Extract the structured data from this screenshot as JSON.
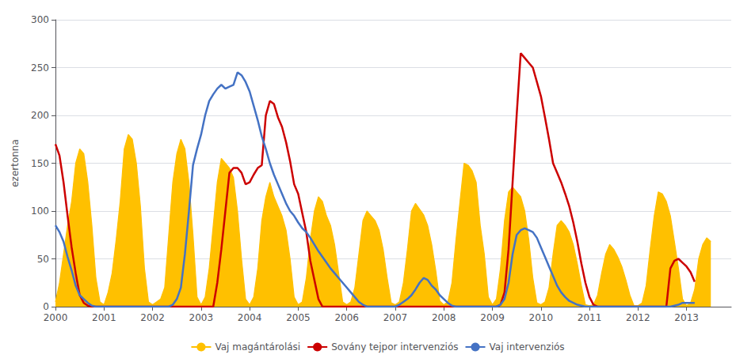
{
  "chart_data": {
    "type": "line",
    "ylabel": "ezertonna",
    "xlim": [
      2000.0,
      2013.92
    ],
    "xticks": [
      2000,
      2001,
      2002,
      2003,
      2004,
      2005,
      2006,
      2007,
      2008,
      2009,
      2010,
      2011,
      2012,
      2013
    ],
    "ylim": [
      0,
      300
    ],
    "yticks": [
      0,
      50,
      100,
      150,
      200,
      250,
      300
    ],
    "grid": true,
    "legend": "bottom",
    "x": [
      2000,
      2000.0833,
      2000.1667,
      2000.25,
      2000.3333,
      2000.4167,
      2000.5,
      2000.5833,
      2000.6667,
      2000.75,
      2000.8333,
      2000.9167,
      2001,
      2001.0833,
      2001.1667,
      2001.25,
      2001.3333,
      2001.4167,
      2001.5,
      2001.5833,
      2001.6667,
      2001.75,
      2001.8333,
      2001.9167,
      2002,
      2002.0833,
      2002.1667,
      2002.25,
      2002.3333,
      2002.4167,
      2002.5,
      2002.5833,
      2002.6667,
      2002.75,
      2002.8333,
      2002.9167,
      2003,
      2003.0833,
      2003.1667,
      2003.25,
      2003.3333,
      2003.4167,
      2003.5,
      2003.5833,
      2003.6667,
      2003.75,
      2003.8333,
      2003.9167,
      2004,
      2004.0833,
      2004.1667,
      2004.25,
      2004.3333,
      2004.4167,
      2004.5,
      2004.5833,
      2004.6667,
      2004.75,
      2004.8333,
      2004.9167,
      2005,
      2005.0833,
      2005.1667,
      2005.25,
      2005.3333,
      2005.4167,
      2005.5,
      2005.5833,
      2005.6667,
      2005.75,
      2005.8333,
      2005.9167,
      2006,
      2006.0833,
      2006.1667,
      2006.25,
      2006.3333,
      2006.4167,
      2006.5,
      2006.5833,
      2006.6667,
      2006.75,
      2006.8333,
      2006.9167,
      2007,
      2007.0833,
      2007.1667,
      2007.25,
      2007.3333,
      2007.4167,
      2007.5,
      2007.5833,
      2007.6667,
      2007.75,
      2007.8333,
      2007.9167,
      2008,
      2008.0833,
      2008.1667,
      2008.25,
      2008.3333,
      2008.4167,
      2008.5,
      2008.5833,
      2008.6667,
      2008.75,
      2008.8333,
      2008.9167,
      2009,
      2009.0833,
      2009.1667,
      2009.25,
      2009.3333,
      2009.4167,
      2009.5,
      2009.5833,
      2009.6667,
      2009.75,
      2009.8333,
      2009.9167,
      2010,
      2010.0833,
      2010.1667,
      2010.25,
      2010.3333,
      2010.4167,
      2010.5,
      2010.5833,
      2010.6667,
      2010.75,
      2010.8333,
      2010.9167,
      2011,
      2011.0833,
      2011.1667,
      2011.25,
      2011.3333,
      2011.4167,
      2011.5,
      2011.5833,
      2011.6667,
      2011.75,
      2011.8333,
      2011.9167,
      2012,
      2012.0833,
      2012.1667,
      2012.25,
      2012.3333,
      2012.4167,
      2012.5,
      2012.5833,
      2012.6667,
      2012.75,
      2012.8333,
      2012.9167,
      2013,
      2013.0833,
      2013.1667,
      2013.25,
      2013.3333,
      2013.4167,
      2013.5
    ],
    "series": [
      {
        "name": "Vaj magántárolási",
        "type": "area",
        "color": "#ffc000",
        "values": [
          5,
          25,
          55,
          85,
          110,
          150,
          165,
          160,
          130,
          85,
          30,
          5,
          2,
          15,
          35,
          70,
          110,
          165,
          180,
          175,
          150,
          105,
          40,
          5,
          2,
          5,
          8,
          20,
          75,
          130,
          160,
          175,
          165,
          130,
          75,
          10,
          2,
          10,
          40,
          85,
          130,
          155,
          150,
          145,
          135,
          100,
          50,
          8,
          2,
          10,
          40,
          90,
          115,
          130,
          115,
          105,
          95,
          80,
          50,
          10,
          2,
          5,
          30,
          70,
          100,
          115,
          110,
          95,
          85,
          65,
          35,
          5,
          2,
          5,
          20,
          55,
          90,
          100,
          95,
          90,
          80,
          60,
          30,
          4,
          2,
          5,
          25,
          60,
          100,
          108,
          102,
          96,
          85,
          65,
          38,
          6,
          2,
          5,
          25,
          70,
          110,
          150,
          148,
          142,
          130,
          85,
          55,
          10,
          2,
          8,
          40,
          90,
          120,
          125,
          120,
          115,
          100,
          70,
          30,
          4,
          2,
          5,
          20,
          55,
          85,
          90,
          85,
          78,
          65,
          45,
          22,
          2,
          1,
          2,
          12,
          35,
          55,
          65,
          60,
          52,
          42,
          28,
          12,
          1,
          1,
          4,
          22,
          60,
          95,
          120,
          118,
          110,
          95,
          68,
          40,
          8,
          1,
          4,
          18,
          50,
          65,
          72,
          68
        ]
      },
      {
        "name": "Sovány tejpor intervenziós",
        "type": "line",
        "color": "#cc0000",
        "values": [
          170,
          158,
          130,
          95,
          62,
          35,
          12,
          4,
          1,
          0,
          0,
          0,
          0,
          0,
          0,
          0,
          0,
          0,
          0,
          0,
          0,
          0,
          0,
          0,
          0,
          0,
          0,
          0,
          0,
          0,
          0,
          0,
          0,
          0,
          0,
          0,
          0,
          0,
          0,
          0,
          25,
          60,
          100,
          140,
          145,
          145,
          140,
          128,
          130,
          138,
          145,
          148,
          200,
          215,
          212,
          198,
          188,
          172,
          152,
          128,
          118,
          98,
          78,
          48,
          28,
          8,
          0,
          0,
          0,
          0,
          0,
          0,
          0,
          0,
          0,
          0,
          0,
          0,
          0,
          0,
          0,
          0,
          0,
          0,
          0,
          0,
          0,
          0,
          0,
          0,
          0,
          0,
          0,
          0,
          0,
          0,
          0,
          0,
          0,
          0,
          0,
          0,
          0,
          0,
          0,
          0,
          0,
          0,
          0,
          0,
          2,
          15,
          60,
          130,
          200,
          265,
          260,
          255,
          250,
          235,
          220,
          198,
          175,
          150,
          140,
          130,
          118,
          105,
          88,
          68,
          45,
          25,
          10,
          2,
          0,
          0,
          0,
          0,
          0,
          0,
          0,
          0,
          0,
          0,
          0,
          0,
          0,
          0,
          0,
          0,
          0,
          0,
          40,
          48,
          50,
          46,
          42,
          36,
          26,
          null,
          null,
          null,
          null
        ]
      },
      {
        "name": "Vaj intervenziós",
        "type": "line",
        "color": "#4472c4",
        "values": [
          85,
          78,
          68,
          52,
          38,
          22,
          12,
          8,
          4,
          1,
          0,
          0,
          0,
          0,
          0,
          0,
          0,
          0,
          0,
          0,
          0,
          0,
          0,
          0,
          0,
          0,
          0,
          0,
          0,
          2,
          8,
          20,
          55,
          100,
          148,
          165,
          180,
          200,
          215,
          222,
          228,
          232,
          228,
          230,
          232,
          245,
          242,
          235,
          225,
          210,
          195,
          178,
          165,
          150,
          138,
          128,
          118,
          108,
          100,
          95,
          88,
          82,
          78,
          72,
          65,
          58,
          52,
          46,
          40,
          35,
          30,
          25,
          20,
          15,
          10,
          5,
          2,
          0,
          0,
          0,
          0,
          0,
          0,
          0,
          0,
          2,
          5,
          8,
          12,
          18,
          25,
          30,
          28,
          22,
          18,
          12,
          8,
          4,
          1,
          0,
          0,
          0,
          0,
          0,
          0,
          0,
          0,
          0,
          0,
          0,
          2,
          8,
          25,
          55,
          75,
          80,
          82,
          80,
          78,
          72,
          62,
          52,
          42,
          32,
          22,
          15,
          10,
          6,
          4,
          2,
          1,
          0,
          0,
          0,
          0,
          0,
          0,
          0,
          0,
          0,
          0,
          0,
          0,
          0,
          0,
          0,
          0,
          0,
          0,
          0,
          0,
          0,
          0,
          1,
          2,
          4,
          4,
          4,
          4,
          null,
          null,
          null,
          null
        ]
      }
    ]
  }
}
